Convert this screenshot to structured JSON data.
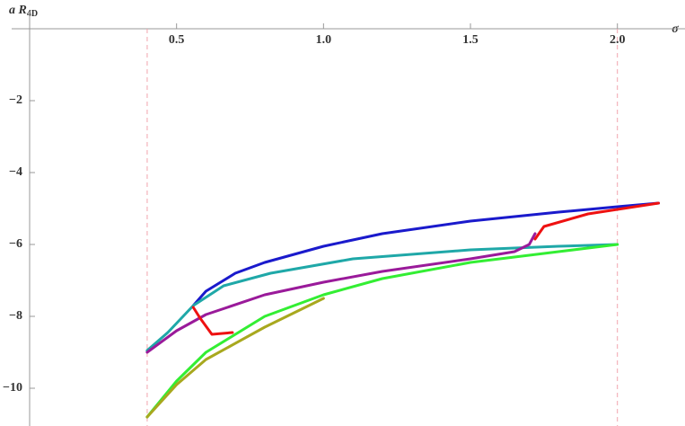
{
  "chart_data": {
    "type": "line",
    "y_label": {
      "main": "a R",
      "sub": "4D"
    },
    "x_label": "σ",
    "xlim": [
      0,
      2.23
    ],
    "ylim": [
      -11.05,
      0
    ],
    "xticks": [
      0.5,
      {
        "value": 1.0,
        "label": "1.0"
      },
      1.5,
      {
        "value": 2.0,
        "label": "2.0"
      }
    ],
    "yticks": [
      {
        "value": -2,
        "label": "−2"
      },
      {
        "value": -4,
        "label": "−4"
      },
      {
        "value": -6,
        "label": "−6"
      },
      {
        "value": -8,
        "label": "−8"
      },
      {
        "value": -10,
        "label": "−10"
      }
    ],
    "vlines": [
      0.4,
      2.0
    ],
    "vline_color": "#f2a3ad",
    "series": [
      {
        "color": "#1a1acc",
        "x": [
          0.557,
          0.6,
          0.7,
          0.8,
          1.0,
          1.2,
          1.5,
          1.8,
          2.0,
          2.14
        ],
        "values": [
          -7.7,
          -7.3,
          -6.8,
          -6.5,
          -6.05,
          -5.7,
          -5.35,
          -5.1,
          -4.95,
          -4.85
        ]
      },
      {
        "color": "#1fa8a8",
        "x": [
          0.4,
          0.47,
          0.557,
          0.66,
          0.82,
          1.1,
          1.5,
          1.8,
          2.0
        ],
        "values": [
          -8.95,
          -8.45,
          -7.7,
          -7.15,
          -6.8,
          -6.4,
          -6.15,
          -6.05,
          -6.0
        ]
      },
      {
        "color": "#9a1a9a",
        "x": [
          0.4,
          0.5,
          0.6,
          0.8,
          1.0,
          1.2,
          1.5,
          1.65,
          1.7,
          1.72
        ],
        "values": [
          -9.0,
          -8.4,
          -7.95,
          -7.4,
          -7.05,
          -6.75,
          -6.4,
          -6.2,
          -6.0,
          -5.7
        ]
      },
      {
        "color": "#ee1111",
        "x": [
          0.557,
          0.58,
          0.62,
          0.69,
          null,
          1.72,
          1.75,
          1.9,
          2.14
        ],
        "values": [
          -7.75,
          -8.05,
          -8.5,
          -8.45,
          null,
          -5.85,
          -5.5,
          -5.15,
          -4.85
        ]
      },
      {
        "color": "#33ee33",
        "x": [
          0.4,
          0.5,
          0.6,
          0.8,
          1.0,
          1.2,
          1.5,
          1.8,
          2.0
        ],
        "values": [
          -10.8,
          -9.8,
          -9.0,
          -8.0,
          -7.4,
          -6.95,
          -6.5,
          -6.2,
          -6.0
        ]
      },
      {
        "color": "#a8a81e",
        "x": [
          0.4,
          0.5,
          0.6,
          0.8,
          1.0
        ],
        "values": [
          -10.8,
          -9.9,
          -9.2,
          -8.3,
          -7.5
        ]
      }
    ]
  }
}
